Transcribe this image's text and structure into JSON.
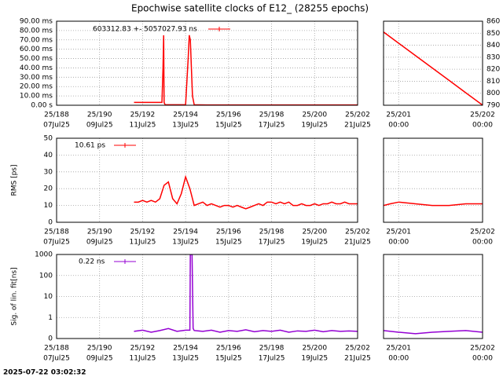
{
  "title": "Epochwise satellite clocks of E12_ (28255 epochs)",
  "timestamp": "2025-07-22 03:02:32",
  "chart_data": [
    {
      "type": "line",
      "x": [
        191.6,
        192.0,
        192.5,
        192.9,
        192.95,
        192.98,
        193.0,
        193.05,
        193.5,
        194.0,
        194.12,
        194.17,
        194.22,
        194.27,
        194.32,
        194.4,
        195.0,
        196.0,
        197.0,
        198.0,
        199.0,
        200.0,
        201.0,
        202.0
      ],
      "series": [
        {
          "name": "603312.83 +- 5057027.93 ns",
          "color": "#ff0000",
          "values": [
            3,
            3,
            3,
            3,
            40,
            75,
            3,
            0.5,
            0.5,
            0.5,
            50,
            75,
            70,
            40,
            10,
            0.5,
            0.3,
            0.3,
            0.3,
            0.3,
            0.3,
            0.3,
            0.3,
            0.3
          ]
        }
      ],
      "xlim": [
        188,
        202
      ],
      "xticks": [
        {
          "value": 188,
          "label": "25/188"
        },
        {
          "value": 190,
          "label": "25/190"
        },
        {
          "value": 192,
          "label": "25/192"
        },
        {
          "value": 194,
          "label": "25/194"
        },
        {
          "value": 196,
          "label": "25/196"
        },
        {
          "value": 198,
          "label": "25/198"
        },
        {
          "value": 200,
          "label": "25/200"
        },
        {
          "value": 202,
          "label": "25/202"
        }
      ],
      "xtick_sublabels": [
        "07Jul25",
        "09Jul25",
        "11Jul25",
        "13Jul25",
        "15Jul25",
        "17Jul25",
        "19Jul25",
        "21Jul25"
      ],
      "ylim": [
        0,
        90
      ],
      "yticks": [
        {
          "value": 0,
          "label": "0.00  s"
        },
        {
          "value": 10,
          "label": "10.00 ms"
        },
        {
          "value": 20,
          "label": "20.00 ms"
        },
        {
          "value": 30,
          "label": "30.00 ms"
        },
        {
          "value": 40,
          "label": "40.00 ms"
        },
        {
          "value": 50,
          "label": "50.00 ms"
        },
        {
          "value": 60,
          "label": "60.00 ms"
        },
        {
          "value": 70,
          "label": "70.00 ms"
        },
        {
          "value": 80,
          "label": "80.00 ms"
        },
        {
          "value": 90,
          "label": "90.00 ms"
        }
      ],
      "grid": true
    },
    {
      "type": "line",
      "x": [
        200.82,
        201.0,
        201.2,
        201.4,
        201.6,
        201.8,
        202.0
      ],
      "series": [
        {
          "color": "#ff0000",
          "values": [
            851,
            841.7,
            831.4,
            821.1,
            810.8,
            800.4,
            790.1
          ]
        }
      ],
      "xlim": [
        200.82,
        202
      ],
      "xticks": [
        {
          "value": 201,
          "label": "25/201"
        },
        {
          "value": 202,
          "label": "25/202"
        }
      ],
      "xtick_sublabels": [
        "00:00",
        "00:00"
      ],
      "ylim": [
        790,
        860
      ],
      "yticks": [
        790,
        800,
        810,
        820,
        830,
        840,
        850,
        860
      ],
      "yaxis_side": "right",
      "grid": true
    },
    {
      "type": "line",
      "ylabel": "RMS [ps]",
      "x": [
        191.6,
        191.8,
        192.0,
        192.2,
        192.4,
        192.6,
        192.8,
        193.0,
        193.2,
        193.4,
        193.6,
        193.8,
        194.0,
        194.2,
        194.4,
        194.6,
        194.8,
        195.0,
        195.2,
        195.4,
        195.6,
        195.8,
        196.0,
        196.2,
        196.4,
        196.6,
        196.8,
        197.0,
        197.2,
        197.4,
        197.6,
        197.8,
        198.0,
        198.2,
        198.4,
        198.6,
        198.8,
        199.0,
        199.2,
        199.4,
        199.6,
        199.8,
        200.0,
        200.2,
        200.4,
        200.6,
        200.8,
        201.0,
        201.2,
        201.4,
        201.6,
        201.8,
        202.0
      ],
      "series": [
        {
          "name": "10.61 ps",
          "color": "#ff0000",
          "values": [
            12,
            12,
            13,
            12,
            13,
            12,
            14,
            22,
            24,
            14,
            11,
            17,
            27,
            20,
            10,
            11,
            12,
            10,
            11,
            10,
            9,
            10,
            10,
            9,
            10,
            9,
            8,
            9,
            10,
            11,
            10,
            12,
            12,
            11,
            12,
            11,
            12,
            10,
            10,
            11,
            10,
            10,
            11,
            10,
            11,
            11,
            12,
            11,
            11,
            12,
            11,
            11,
            11
          ]
        }
      ],
      "xlim": [
        188,
        202
      ],
      "xticks": [
        {
          "value": 188,
          "label": "25/188"
        },
        {
          "value": 190,
          "label": "25/190"
        },
        {
          "value": 192,
          "label": "25/192"
        },
        {
          "value": 194,
          "label": "25/194"
        },
        {
          "value": 196,
          "label": "25/196"
        },
        {
          "value": 198,
          "label": "25/198"
        },
        {
          "value": 200,
          "label": "25/200"
        },
        {
          "value": 202,
          "label": "25/202"
        }
      ],
      "xtick_sublabels": [
        "07Jul25",
        "09Jul25",
        "11Jul25",
        "13Jul25",
        "15Jul25",
        "17Jul25",
        "19Jul25",
        "21Jul25"
      ],
      "ylim": [
        0,
        50
      ],
      "yticks": [
        0,
        10,
        20,
        30,
        40,
        50
      ],
      "grid": true
    },
    {
      "type": "line",
      "x": [
        200.82,
        200.9,
        201.0,
        201.2,
        201.4,
        201.6,
        201.8,
        202.0
      ],
      "series": [
        {
          "color": "#ff0000",
          "values": [
            10,
            11,
            12,
            11,
            10,
            10,
            11,
            11
          ]
        }
      ],
      "xlim": [
        200.82,
        202
      ],
      "xticks": [
        {
          "value": 201,
          "label": "25/201"
        },
        {
          "value": 202,
          "label": "25/202"
        }
      ],
      "xtick_sublabels": [
        "00:00",
        "00:00"
      ],
      "ylim": [
        0,
        50
      ],
      "yticks": [
        0,
        10,
        20,
        30,
        40,
        50
      ],
      "ytick_labels": false,
      "grid": true
    },
    {
      "type": "line",
      "ylabel": "Sig. of lin. fit[ns]",
      "log": true,
      "x": [
        191.6,
        192.0,
        192.4,
        192.8,
        193.2,
        193.6,
        194.0,
        194.2,
        194.22,
        194.3,
        194.35,
        194.4,
        194.8,
        195.2,
        195.6,
        196.0,
        196.4,
        196.8,
        197.2,
        197.6,
        198.0,
        198.4,
        198.8,
        199.2,
        199.6,
        200.0,
        200.4,
        200.8,
        201.2,
        201.6,
        202.0
      ],
      "series": [
        {
          "name": "0.22 ns",
          "color": "#9400d3",
          "values": [
            0.22,
            0.25,
            0.2,
            0.24,
            0.3,
            0.22,
            0.25,
            0.25,
            1000,
            1000,
            0.3,
            0.24,
            0.22,
            0.25,
            0.2,
            0.24,
            0.22,
            0.26,
            0.21,
            0.24,
            0.22,
            0.25,
            0.2,
            0.23,
            0.22,
            0.25,
            0.21,
            0.24,
            0.22,
            0.23,
            0.22
          ]
        }
      ],
      "xlim": [
        188,
        202
      ],
      "xticks": [
        {
          "value": 188,
          "label": "25/188"
        },
        {
          "value": 190,
          "label": "25/190"
        },
        {
          "value": 192,
          "label": "25/192"
        },
        {
          "value": 194,
          "label": "25/194"
        },
        {
          "value": 196,
          "label": "25/196"
        },
        {
          "value": 198,
          "label": "25/198"
        },
        {
          "value": 200,
          "label": "25/200"
        },
        {
          "value": 202,
          "label": "25/202"
        }
      ],
      "xtick_sublabels": [
        "07Jul25",
        "09Jul25",
        "11Jul25",
        "13Jul25",
        "15Jul25",
        "17Jul25",
        "19Jul25",
        "21Jul25"
      ],
      "ylim": [
        0.1,
        1000
      ],
      "yticks": [
        {
          "value": 0.1,
          "label": "0"
        },
        1,
        10,
        100,
        1000
      ],
      "grid": true
    },
    {
      "type": "line",
      "log": true,
      "x": [
        200.82,
        201.0,
        201.2,
        201.4,
        201.6,
        201.8,
        202.0
      ],
      "series": [
        {
          "color": "#9400d3",
          "values": [
            0.24,
            0.2,
            0.17,
            0.2,
            0.22,
            0.24,
            0.2
          ]
        }
      ],
      "xlim": [
        200.82,
        202
      ],
      "xticks": [
        {
          "value": 201,
          "label": "25/201"
        },
        {
          "value": 202,
          "label": "25/202"
        }
      ],
      "xtick_sublabels": [
        "00:00",
        "00:00"
      ],
      "ylim": [
        0.1,
        1000
      ],
      "yticks": [
        {
          "value": 0.1,
          "label": "0"
        },
        1,
        10,
        100,
        1000
      ],
      "ytick_labels": false,
      "grid": true
    }
  ]
}
